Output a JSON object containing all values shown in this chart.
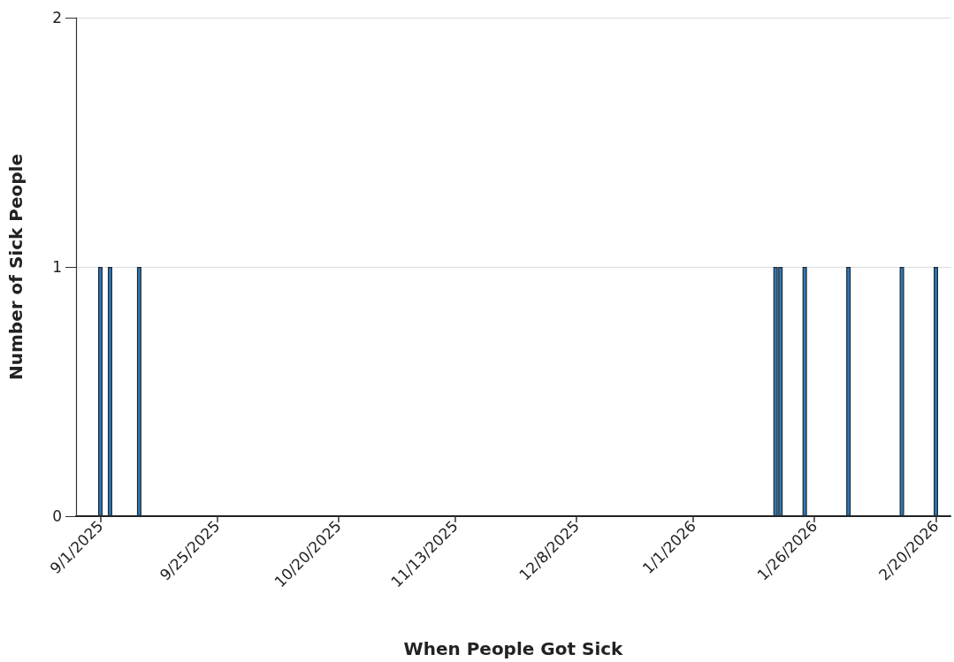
{
  "chart_data": {
    "type": "bar",
    "xlabel": "When People Got Sick",
    "ylabel": "Number of Sick People",
    "x": [
      "2025-09-01",
      "2025-09-03",
      "2025-09-09",
      "2026-01-18",
      "2026-01-19",
      "2026-01-24",
      "2026-02-02",
      "2026-02-13",
      "2026-02-20"
    ],
    "values": [
      1,
      1,
      1,
      1,
      1,
      1,
      1,
      1,
      1
    ],
    "color": "#2f78b8",
    "xlim": [
      "2025-08-27",
      "2026-02-23"
    ],
    "xticks": [
      {
        "value": "2025-09-01",
        "label": "9/1/2025"
      },
      {
        "value": "2025-09-25",
        "label": "9/25/2025"
      },
      {
        "value": "2025-10-20",
        "label": "10/20/2025"
      },
      {
        "value": "2025-11-13",
        "label": "11/13/2025"
      },
      {
        "value": "2025-12-08",
        "label": "12/8/2025"
      },
      {
        "value": "2026-01-01",
        "label": "1/1/2026"
      },
      {
        "value": "2026-01-26",
        "label": "1/26/2026"
      },
      {
        "value": "2026-02-20",
        "label": "2/20/2026"
      }
    ],
    "ylim": [
      0,
      2
    ],
    "yticks": [
      0,
      1,
      2
    ],
    "grid": "y"
  }
}
